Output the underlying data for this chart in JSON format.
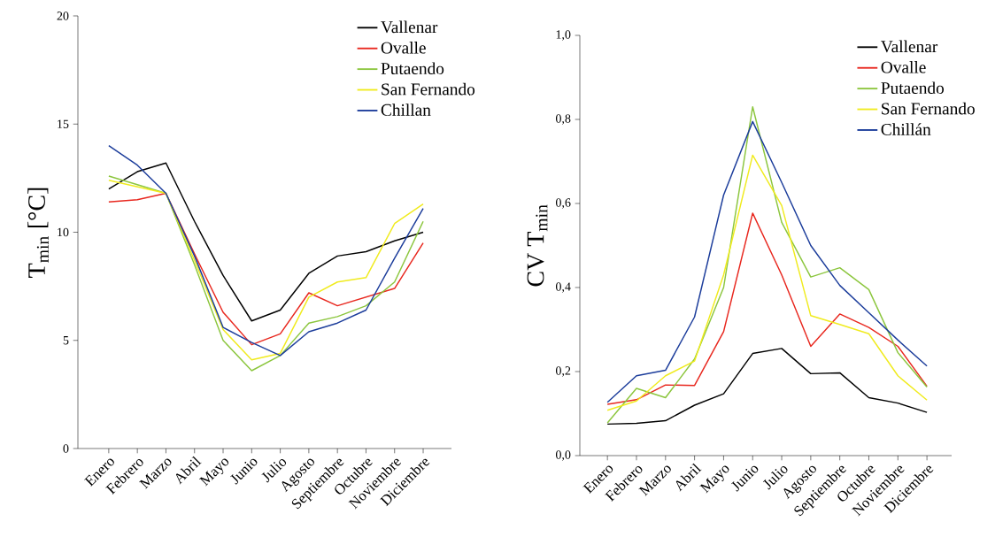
{
  "chart_data": [
    {
      "type": "line",
      "ylabel": "T$_{min}$ [°C]",
      "categories": [
        "Enero",
        "Febrero",
        "Marzo",
        "Abril",
        "Mayo",
        "Junio",
        "Julio",
        "Agosto",
        "Septiembre",
        "Octubre",
        "Noviembre",
        "Diciembre"
      ],
      "series": [
        {
          "name": "Vallenar",
          "color": "#000000",
          "values": [
            12.0,
            12.8,
            13.2,
            10.5,
            8.0,
            5.9,
            6.4,
            8.1,
            8.9,
            9.1,
            9.6,
            10.0
          ]
        },
        {
          "name": "Ovalle",
          "color": "#e8271e",
          "values": [
            11.4,
            11.5,
            11.8,
            9.0,
            6.3,
            4.8,
            5.3,
            7.2,
            6.6,
            7.0,
            7.4,
            9.5
          ]
        },
        {
          "name": "Putaendo",
          "color": "#8cc63e",
          "values": [
            12.6,
            12.2,
            11.8,
            8.5,
            5.0,
            3.6,
            4.3,
            5.8,
            6.1,
            6.6,
            7.7,
            10.5
          ]
        },
        {
          "name": "San Fernando",
          "color": "#f0eb1e",
          "values": [
            12.4,
            12.1,
            11.8,
            8.7,
            5.5,
            4.1,
            4.4,
            7.0,
            7.7,
            7.9,
            10.4,
            11.3
          ]
        },
        {
          "name": "Chillan",
          "color": "#1c3d9b",
          "values": [
            14.0,
            13.1,
            11.8,
            8.9,
            5.6,
            4.9,
            4.3,
            5.4,
            5.8,
            6.4,
            8.8,
            11.1
          ]
        }
      ],
      "ylim": [
        0,
        20
      ],
      "yticks": [
        0,
        5,
        10,
        15,
        20
      ],
      "grid": false,
      "legend": "top right",
      "marker": "none",
      "line_style": "solid"
    },
    {
      "type": "line",
      "ylabel": "CV T$_{min}$",
      "categories": [
        "Enero",
        "Febrero",
        "Marzo",
        "Abril",
        "Mayo",
        "Junio",
        "Julio",
        "Agosto",
        "Septiembre",
        "Octubre",
        "Noviembre",
        "Diciembre"
      ],
      "series": [
        {
          "name": "Vallenar",
          "color": "#000000",
          "values": [
            0.075,
            0.077,
            0.083,
            0.12,
            0.147,
            0.243,
            0.255,
            0.195,
            0.197,
            0.138,
            0.125,
            0.103
          ]
        },
        {
          "name": "Ovalle",
          "color": "#e8271e",
          "values": [
            0.122,
            0.133,
            0.168,
            0.167,
            0.295,
            0.577,
            0.43,
            0.26,
            0.337,
            0.305,
            0.26,
            0.165
          ]
        },
        {
          "name": "Putaendo",
          "color": "#8cc63e",
          "values": [
            0.078,
            0.16,
            0.138,
            0.23,
            0.4,
            0.83,
            0.555,
            0.425,
            0.447,
            0.395,
            0.245,
            0.163
          ]
        },
        {
          "name": "San Fernando",
          "color": "#f0eb1e",
          "values": [
            0.108,
            0.13,
            0.19,
            0.225,
            0.43,
            0.715,
            0.595,
            0.333,
            0.312,
            0.29,
            0.19,
            0.132
          ]
        },
        {
          "name": "Chillán",
          "color": "#1c3d9b",
          "values": [
            0.127,
            0.19,
            0.203,
            0.33,
            0.62,
            0.795,
            0.65,
            0.5,
            0.405,
            0.34,
            0.275,
            0.213
          ]
        }
      ],
      "ylim": [
        0,
        1.0
      ],
      "yticks": [
        {
          "value": 0,
          "label": "0,0"
        },
        {
          "value": 0.2,
          "label": "0,2"
        },
        {
          "value": 0.4,
          "label": "0,4"
        },
        {
          "value": 0.6,
          "label": "0,6"
        },
        {
          "value": 0.8,
          "label": "0,8"
        },
        {
          "value": 1.0,
          "label": "1,0"
        }
      ],
      "grid": false,
      "legend": "top right",
      "marker": "none",
      "line_style": "solid"
    }
  ]
}
